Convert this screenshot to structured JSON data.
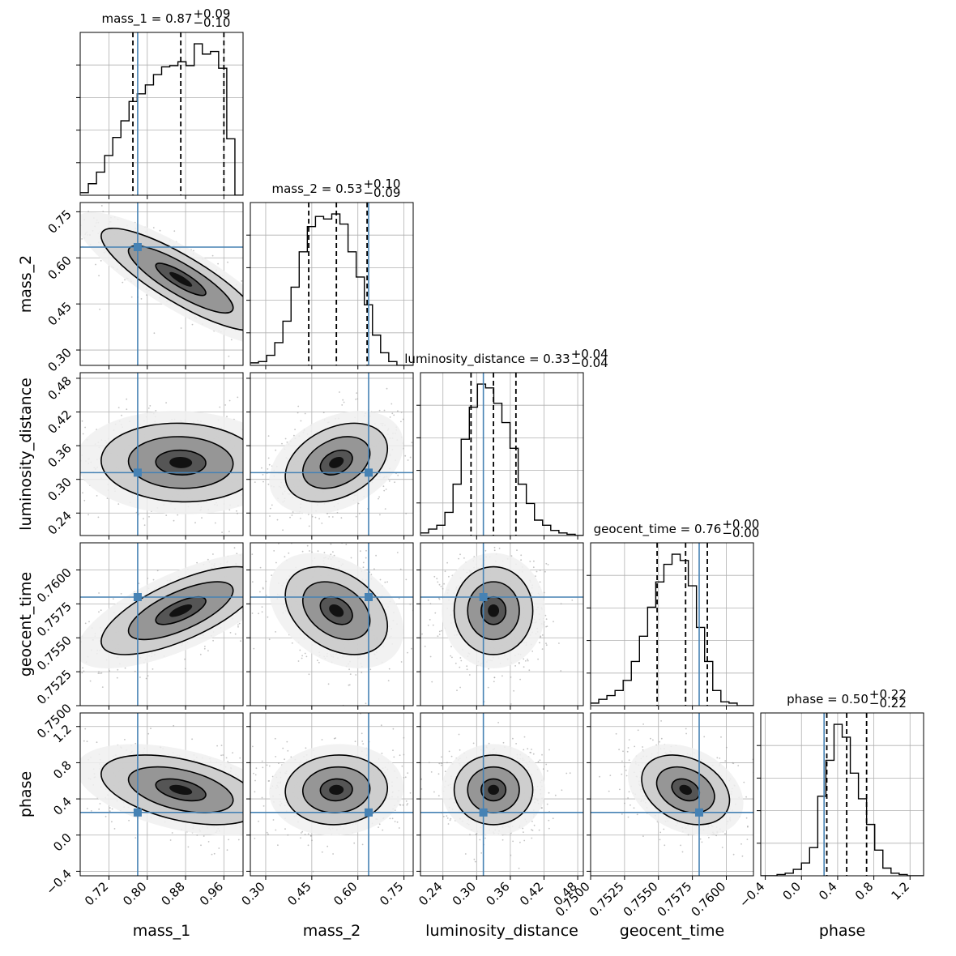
{
  "chart_data": {
    "type": "corner",
    "params": [
      "mass_1",
      "mass_2",
      "luminosity_distance",
      "geocent_time",
      "phase"
    ],
    "truths": [
      0.78,
      0.635,
      0.312,
      0.758,
      0.25
    ],
    "colors": {
      "truth": "#4682b4",
      "hist": "#000000",
      "grid": "#b0b0b0",
      "points": "#9a9a9a"
    },
    "titles": [
      {
        "text": "mass_1 = 0.87",
        "sup": "+0.09",
        "sub": "−0.10"
      },
      {
        "text": "mass_2 = 0.53",
        "sup": "+0.10",
        "sub": "−0.09"
      },
      {
        "text": "luminosity_distance = 0.33",
        "sup": "+0.04",
        "sub": "−0.04"
      },
      {
        "text": "geocent_time = 0.76",
        "sup": "+0.00",
        "sub": "−0.00"
      },
      {
        "text": "phase = 0.50",
        "sup": "+0.22",
        "sub": "−0.22"
      }
    ],
    "xlabels": [
      "mass_1",
      "mass_2",
      "luminosity_distance",
      "geocent_time",
      "phase"
    ],
    "ylabels": [
      "mass_2",
      "luminosity_distance",
      "geocent_time",
      "phase"
    ],
    "ranges": [
      [
        0.66,
        1.0
      ],
      [
        0.25,
        0.78
      ],
      [
        0.2,
        0.49
      ],
      [
        0.75,
        0.762
      ],
      [
        -0.45,
        1.35
      ]
    ],
    "ticks": [
      {
        "values": [
          0.72,
          0.8,
          0.88,
          0.96
        ],
        "labels": [
          "0.72",
          "0.80",
          "0.88",
          "0.96"
        ]
      },
      {
        "values": [
          0.3,
          0.45,
          0.6,
          0.75
        ],
        "labels": [
          "0.30",
          "0.45",
          "0.60",
          "0.75"
        ]
      },
      {
        "values": [
          0.24,
          0.3,
          0.36,
          0.42,
          0.48
        ],
        "labels": [
          "0.24",
          "0.30",
          "0.36",
          "0.42",
          "0.48"
        ]
      },
      {
        "values": [
          0.75,
          0.7525,
          0.755,
          0.7575,
          0.76
        ],
        "labels": [
          "0.7500",
          "0.7525",
          "0.7550",
          "0.7575",
          "0.7600"
        ]
      },
      {
        "values": [
          -0.4,
          0.0,
          0.4,
          0.8,
          1.2
        ],
        "labels": [
          "−0.4",
          "0.0",
          "0.4",
          "0.8",
          "1.2"
        ]
      }
    ],
    "quantiles": [
      [
        0.77,
        0.87,
        0.96
      ],
      [
        0.44,
        0.53,
        0.63
      ],
      [
        0.29,
        0.33,
        0.37
      ],
      [
        0.7549,
        0.757,
        0.7586
      ],
      [
        0.28,
        0.5,
        0.72
      ]
    ],
    "histograms": [
      {
        "start": 0.66,
        "width": 0.017,
        "counts": [
          2,
          9,
          18,
          31,
          45,
          58,
          73,
          79,
          86,
          94,
          100,
          101,
          104,
          101,
          118,
          110,
          112,
          99,
          44,
          0
        ]
      },
      {
        "start": 0.25,
        "width": 0.0265,
        "counts": [
          2,
          3,
          8,
          18,
          35,
          62,
          90,
          110,
          118,
          116,
          120,
          112,
          90,
          70,
          48,
          24,
          10,
          3,
          0,
          0
        ]
      },
      {
        "start": 0.2,
        "width": 0.0145,
        "counts": [
          2,
          5,
          8,
          18,
          40,
          75,
          100,
          118,
          115,
          103,
          88,
          68,
          40,
          25,
          12,
          8,
          4,
          2,
          1,
          0
        ]
      },
      {
        "start": 0.75,
        "width": 0.0006,
        "counts": [
          2,
          5,
          8,
          12,
          20,
          35,
          55,
          78,
          98,
          112,
          120,
          115,
          95,
          62,
          35,
          12,
          3,
          2,
          0,
          0
        ]
      },
      {
        "start": -0.45,
        "width": 0.09,
        "counts": [
          0,
          0,
          1,
          2,
          5,
          10,
          22,
          62,
          90,
          118,
          108,
          80,
          60,
          40,
          20,
          6,
          2,
          1,
          0,
          0
        ]
      }
    ],
    "correlations": {
      "1-0": -0.85,
      "2-0": -0.05,
      "2-1": 0.35,
      "3-0": 0.7,
      "3-1": -0.35,
      "3-2": 0.0,
      "4-0": -0.45,
      "4-1": 0.05,
      "4-2": 0.0,
      "4-3": -0.3
    }
  }
}
